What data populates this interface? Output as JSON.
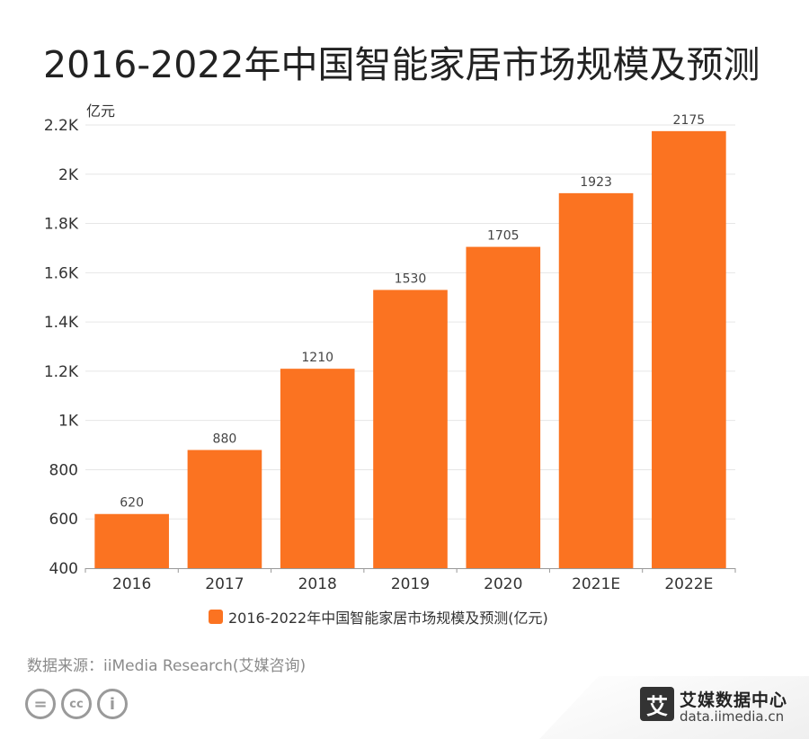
{
  "title": "2016-2022年中国智能家居市场规模及预测",
  "chart_data": {
    "type": "bar",
    "categories": [
      "2016",
      "2017",
      "2018",
      "2019",
      "2020",
      "2021E",
      "2022E"
    ],
    "series": [
      {
        "name": "2016-2022年中国智能家居市场规模及预测(亿元)",
        "values": [
          620,
          880,
          1210,
          1530,
          1705,
          1923,
          2175
        ],
        "color": "#fb7321"
      }
    ],
    "unit_label": "亿元",
    "ylim": [
      400,
      2200
    ],
    "yticks": [
      400,
      600,
      800,
      1000,
      1200,
      1400,
      1600,
      1800,
      2000,
      2200
    ],
    "ytick_labels": [
      "400",
      "600",
      "800",
      "1K",
      "1.2K",
      "1.4K",
      "1.6K",
      "1.8K",
      "2K",
      "2.2K"
    ],
    "grid": true,
    "legend_position": "bottom",
    "data_labels": true
  },
  "legend": {
    "label": "2016-2022年中国智能家居市场规模及预测(亿元)"
  },
  "source": "数据来源：iiMedia Research(艾媒咨询)",
  "cc_icons": [
    "equals-icon",
    "cc-icon",
    "person-icon"
  ],
  "cc_symbols": [
    "=",
    "cc",
    "i"
  ],
  "brand": {
    "logo_char": "艾",
    "name": "艾媒数据中心",
    "url": "data.iimedia.cn"
  }
}
